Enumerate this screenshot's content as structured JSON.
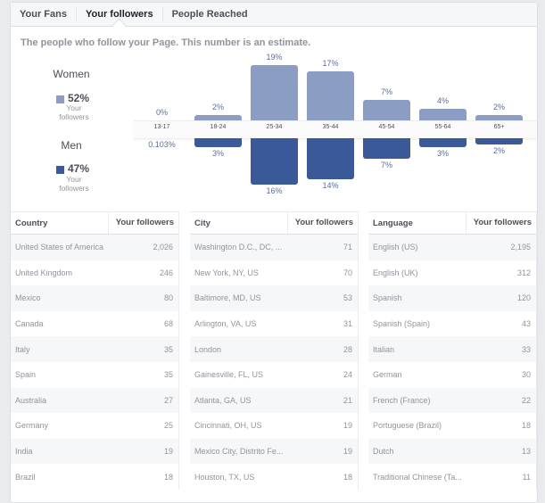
{
  "tabs": [
    {
      "label": "Your Fans",
      "active": false
    },
    {
      "label": "Your followers",
      "active": true
    },
    {
      "label": "People Reached",
      "active": false
    }
  ],
  "subtitle": "The people who follow your Page. This number is an estimate.",
  "legend": {
    "women": {
      "label": "Women",
      "percent": "52%",
      "sub": "Your followers",
      "color": "#8b9dc3"
    },
    "men": {
      "label": "Men",
      "percent": "47%",
      "sub": "Your followers",
      "color": "#3b5998"
    }
  },
  "chart_data": {
    "type": "bar",
    "title": "",
    "categories": [
      "13-17",
      "18-24",
      "25-34",
      "35-44",
      "45-54",
      "55-64",
      "65+"
    ],
    "series": [
      {
        "name": "Women",
        "values": [
          0,
          2,
          19,
          17,
          7,
          4,
          2
        ],
        "labels": [
          "0%",
          "2%",
          "19%",
          "17%",
          "7%",
          "4%",
          "2%"
        ],
        "color": "#8b9dc3"
      },
      {
        "name": "Men",
        "values": [
          0.103,
          3,
          16,
          14,
          7,
          3,
          2
        ],
        "labels": [
          "0.103%",
          "3%",
          "16%",
          "14%",
          "7%",
          "3%",
          "2%"
        ],
        "color": "#3b5998"
      }
    ],
    "xlabel": "",
    "ylabel": "",
    "unit": "%"
  },
  "tables": [
    {
      "header": [
        "Country",
        "Your followers"
      ],
      "rows": [
        [
          "United States of America",
          "2,026"
        ],
        [
          "United Kingdom",
          "246"
        ],
        [
          "Mexico",
          "80"
        ],
        [
          "Canada",
          "68"
        ],
        [
          "Italy",
          "35"
        ],
        [
          "Spain",
          "35"
        ],
        [
          "Australia",
          "27"
        ],
        [
          "Germany",
          "25"
        ],
        [
          "India",
          "19"
        ],
        [
          "Brazil",
          "18"
        ]
      ]
    },
    {
      "header": [
        "City",
        "Your followers"
      ],
      "rows": [
        [
          "Washington D.C., DC, ...",
          "71"
        ],
        [
          "New York, NY, US",
          "70"
        ],
        [
          "Baltimore, MD, US",
          "53"
        ],
        [
          "Arlington, VA, US",
          "31"
        ],
        [
          "London",
          "28"
        ],
        [
          "Gainesville, FL, US",
          "24"
        ],
        [
          "Atlanta, GA, US",
          "21"
        ],
        [
          "Cincinnati, OH, US",
          "19"
        ],
        [
          "Mexico City, Distrito Fe...",
          "19"
        ],
        [
          "Houston, TX, US",
          "18"
        ]
      ]
    },
    {
      "header": [
        "Language",
        "Your followers"
      ],
      "rows": [
        [
          "English (US)",
          "2,195"
        ],
        [
          "English (UK)",
          "312"
        ],
        [
          "Spanish",
          "120"
        ],
        [
          "Spanish (Spain)",
          "43"
        ],
        [
          "Italian",
          "33"
        ],
        [
          "German",
          "30"
        ],
        [
          "French (France)",
          "22"
        ],
        [
          "Portuguese (Brazil)",
          "18"
        ],
        [
          "Dutch",
          "13"
        ],
        [
          "Traditional Chinese (Ta...",
          "11"
        ]
      ]
    }
  ]
}
